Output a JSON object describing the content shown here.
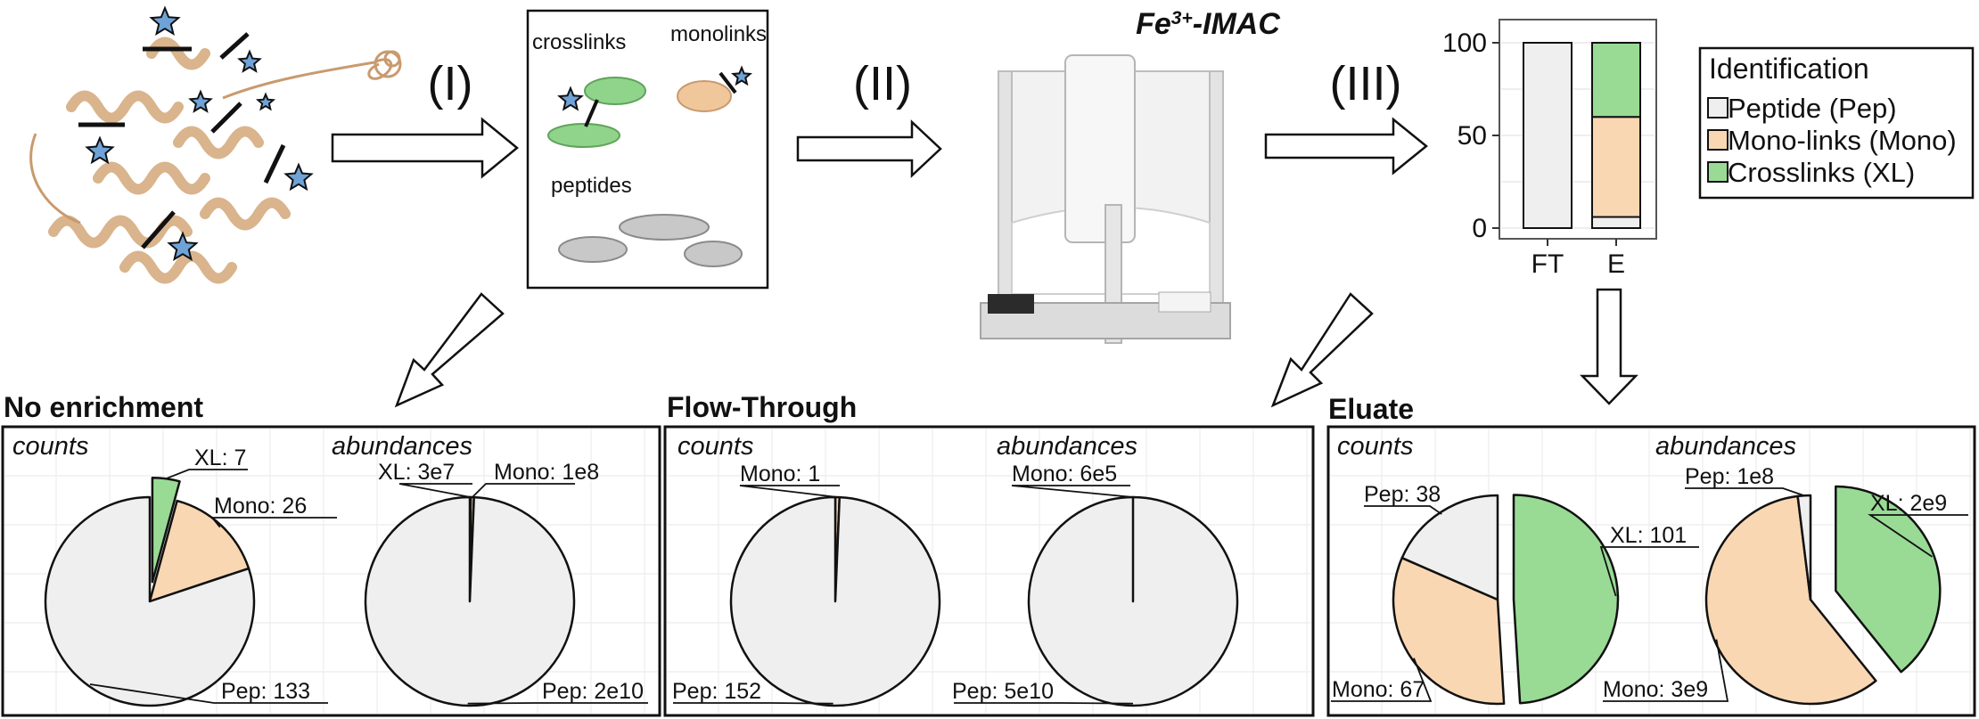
{
  "steps": {
    "step1": "(I)",
    "step2": "(II)",
    "step3": "(III)"
  },
  "instrument_title": {
    "main": "Fe",
    "sup": "3+",
    "rest": "-IMAC"
  },
  "species_box": {
    "crosslinks": "crosslinks",
    "monolinks": "monolinks",
    "peptides": "peptides"
  },
  "colors": {
    "pep": "#efefef",
    "mono": "#f9d7b3",
    "xl": "#99db95",
    "arrow_fill": "#ffffff",
    "stroke": "#111111"
  },
  "legend": {
    "title": "Identification",
    "items": [
      {
        "key": "pep",
        "label": "Peptide (Pep)"
      },
      {
        "key": "mono",
        "label": "Mono-links (Mono)"
      },
      {
        "key": "xl",
        "label": "Crosslinks (XL)"
      }
    ]
  },
  "chart_data": [
    {
      "type": "bar",
      "stacked": true,
      "categories": [
        "FT",
        "E"
      ],
      "series": [
        {
          "key": "pep",
          "values": [
            100,
            6
          ]
        },
        {
          "key": "mono",
          "values": [
            0,
            54
          ]
        },
        {
          "key": "xl",
          "values": [
            0,
            40
          ]
        }
      ],
      "yticks": [
        0,
        50,
        100
      ],
      "ylim": [
        0,
        100
      ]
    },
    {
      "type": "pie",
      "panel": "No enrichment",
      "subtitle": "counts",
      "slices": [
        {
          "key": "xl",
          "value": 7,
          "label": "XL: 7",
          "exploded": true
        },
        {
          "key": "mono",
          "value": 26,
          "label": "Mono: 26"
        },
        {
          "key": "pep",
          "value": 133,
          "label": "Pep: 133"
        }
      ]
    },
    {
      "type": "pie",
      "panel": "No enrichment",
      "subtitle": "abundances",
      "slices": [
        {
          "key": "xl",
          "value": 30000000.0,
          "label": "XL: 3e7"
        },
        {
          "key": "mono",
          "value": 100000000.0,
          "label": "Mono: 1e8"
        },
        {
          "key": "pep",
          "value": 20000000000.0,
          "label": "Pep: 2e10"
        }
      ]
    },
    {
      "type": "pie",
      "panel": "Flow-Through",
      "subtitle": "counts",
      "slices": [
        {
          "key": "mono",
          "value": 1,
          "label": "Mono: 1"
        },
        {
          "key": "pep",
          "value": 152,
          "label": "Pep: 152"
        }
      ]
    },
    {
      "type": "pie",
      "panel": "Flow-Through",
      "subtitle": "abundances",
      "slices": [
        {
          "key": "mono",
          "value": 600000.0,
          "label": "Mono: 6e5"
        },
        {
          "key": "pep",
          "value": 50000000000.0,
          "label": "Pep: 5e10"
        }
      ]
    },
    {
      "type": "pie",
      "panel": "Eluate",
      "subtitle": "counts",
      "slices": [
        {
          "key": "xl",
          "value": 101,
          "label": "XL: 101",
          "exploded": true
        },
        {
          "key": "mono",
          "value": 67,
          "label": "Mono: 67"
        },
        {
          "key": "pep",
          "value": 38,
          "label": "Pep: 38"
        }
      ]
    },
    {
      "type": "pie",
      "panel": "Eluate",
      "subtitle": "abundances",
      "slices": [
        {
          "key": "xl",
          "value": 2000000000.0,
          "label": "XL: 2e9",
          "exploded": true
        },
        {
          "key": "mono",
          "value": 3000000000.0,
          "label": "Mono: 3e9"
        },
        {
          "key": "pep",
          "value": 100000000.0,
          "label": "Pep: 1e8"
        }
      ]
    }
  ]
}
